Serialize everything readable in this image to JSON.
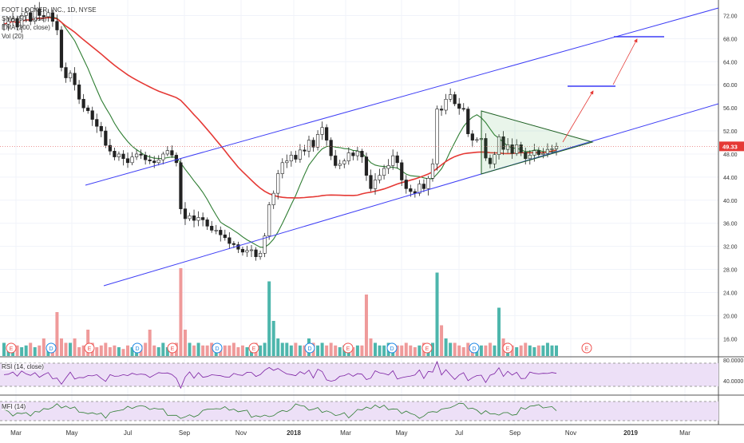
{
  "legend": {
    "symbol": "FOOT LOCKER, INC., 1D, NYSE",
    "sma": "SMA (50, close)",
    "ema": "EMA (200, close)",
    "vol": "Vol (20)"
  },
  "rsi_label": "RSI (14, close)",
  "mfi_label": "MFI (14)",
  "colors": {
    "up": "#26a69a",
    "down": "#ef5350",
    "candle": "#222222",
    "sma": "#2e7d32",
    "ema": "#e53935",
    "channel": "#3d3df5",
    "triangle": "#1b5e20",
    "price_line": "#e57373",
    "rsi_fill": "#ede0f7",
    "arrow": "#e53935"
  },
  "chart_data": {
    "type": "candlestick",
    "price_axis": {
      "min": 13,
      "max": 74,
      "ticks": [
        16,
        20,
        24,
        28,
        32,
        36,
        40,
        44,
        48,
        52,
        56,
        60,
        64,
        68,
        72
      ],
      "tick_labels": [
        "16.00",
        "20.00",
        "24.00",
        "28.00",
        "32.00",
        "36.00",
        "40.00",
        "44.00",
        "48.00",
        "52.00",
        "56.00",
        "60.00",
        "64.00",
        "68.00",
        "72.00"
      ]
    },
    "last_price": 49.33,
    "last_price_label": "49.33",
    "x_axis": {
      "labels": [
        "Mar",
        "May",
        "Jul",
        "Sep",
        "Nov",
        "2018",
        "Mar",
        "May",
        "Jul",
        "Sep",
        "Nov",
        "2019",
        "Mar"
      ],
      "bold": [
        "2018",
        "2019"
      ]
    },
    "close": [
      70.5,
      71,
      71.5,
      70,
      72,
      72.5,
      71,
      73.2,
      72,
      71.8,
      72.5,
      71,
      69.5,
      63,
      61.2,
      62,
      60,
      57.5,
      56,
      55.5,
      54,
      52.8,
      52,
      49.5,
      48.5,
      47.5,
      48,
      47.2,
      46.5,
      47.5,
      48,
      47.8,
      47,
      46.8,
      46.5,
      47,
      48,
      48.6,
      47.8,
      46.5,
      38.5,
      36.8,
      37.3,
      36.5,
      37,
      36.6,
      35.5,
      34.8,
      34.8,
      34,
      33.5,
      32.5,
      32.3,
      31.5,
      31,
      31.3,
      31.4,
      30.2,
      30.8,
      33.8,
      39.2,
      41.2,
      44.6,
      46.5,
      46.8,
      47.8,
      47.1,
      48.7,
      48.5,
      50.4,
      49.2,
      51.4,
      52.6,
      50.4,
      47.7,
      46,
      46.3,
      46.8,
      48.2,
      47.7,
      48.5,
      47.5,
      44.3,
      42,
      43.5,
      44.3,
      45.5,
      46,
      47.7,
      46.5,
      43.5,
      42,
      41.5,
      41.2,
      42.8,
      42,
      43.8,
      46.3,
      55.8,
      55.6,
      57.5,
      58.3,
      56.7,
      55.9,
      55.8,
      51.5,
      50.4,
      50.5,
      50.7,
      47.3,
      46.3,
      47.9,
      51,
      48.8,
      49.6,
      48.1,
      49.6,
      48.3,
      47.2,
      47.8,
      48.6,
      47.9,
      48.1,
      48.8,
      48.9,
      49.33
    ],
    "volume_relative": [
      0.15,
      0.12,
      0.1,
      0.12,
      0.1,
      0.12,
      0.15,
      0.1,
      0.12,
      0.2,
      0.1,
      0.12,
      0.5,
      0.2,
      0.15,
      0.15,
      0.2,
      0.1,
      0.12,
      0.3,
      0.15,
      0.1,
      0.12,
      0.15,
      0.1,
      0.12,
      0.1,
      0.08,
      0.12,
      0.1,
      0.1,
      0.12,
      0.15,
      0.3,
      0.12,
      0.1,
      0.15,
      0.1,
      0.12,
      0.15,
      1.0,
      0.3,
      0.15,
      0.12,
      0.15,
      0.12,
      0.12,
      0.15,
      0.12,
      0.1,
      0.12,
      0.12,
      0.15,
      0.1,
      0.12,
      0.1,
      0.12,
      0.15,
      0.12,
      0.15,
      0.85,
      0.4,
      0.2,
      0.15,
      0.15,
      0.12,
      0.15,
      0.12,
      0.12,
      0.2,
      0.15,
      0.12,
      0.15,
      0.12,
      0.15,
      0.12,
      0.1,
      0.12,
      0.12,
      0.1,
      0.12,
      0.12,
      0.7,
      0.2,
      0.15,
      0.12,
      0.12,
      0.15,
      0.1,
      0.12,
      0.12,
      0.15,
      0.12,
      0.1,
      0.12,
      0.15,
      0.12,
      0.15,
      0.95,
      0.35,
      0.2,
      0.15,
      0.15,
      0.12,
      0.1,
      0.15,
      0.12,
      0.1,
      0.12,
      0.12,
      0.15,
      0.12,
      0.55,
      0.2,
      0.15,
      0.12,
      0.1,
      0.12,
      0.15,
      0.12,
      0.1,
      0.12,
      0.12,
      0.15,
      0.12,
      0.12
    ],
    "earnings_markers": [
      "E",
      "E",
      "E",
      "E",
      "E",
      "E",
      "E",
      "E"
    ],
    "dividend_markers": [
      "D",
      "D",
      "D",
      "D",
      "D",
      "D"
    ],
    "rsi": {
      "ticks": [
        "80.0000",
        "40.0000"
      ]
    },
    "annotations": {
      "ascending_channel": true,
      "symmetrical_triangle": true,
      "projection_targets": 2
    }
  }
}
